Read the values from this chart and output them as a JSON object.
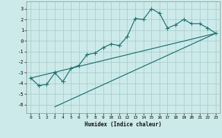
{
  "xlabel": "Humidex (Indice chaleur)",
  "bg_color": "#cdeaea",
  "grid_color": "#aacccc",
  "line_color": "#1a7070",
  "xlim": [
    -0.5,
    23.5
  ],
  "ylim": [
    -6.8,
    3.7
  ],
  "xticks": [
    0,
    1,
    2,
    3,
    4,
    5,
    6,
    7,
    8,
    9,
    10,
    11,
    12,
    13,
    14,
    15,
    16,
    17,
    18,
    19,
    20,
    21,
    22,
    23
  ],
  "yticks": [
    -6,
    -5,
    -4,
    -3,
    -2,
    -1,
    0,
    1,
    2,
    3
  ],
  "curve1_x": [
    0,
    1,
    2,
    3,
    4,
    5,
    6,
    7,
    8,
    9,
    10,
    11,
    12,
    13,
    14,
    15,
    16,
    17,
    18,
    19,
    20,
    21,
    22,
    23
  ],
  "curve1_y": [
    -3.5,
    -4.2,
    -4.1,
    -3.0,
    -3.85,
    -2.6,
    -2.3,
    -1.3,
    -1.15,
    -0.65,
    -0.3,
    -0.45,
    0.4,
    2.1,
    2.0,
    3.0,
    2.6,
    1.2,
    1.5,
    2.0,
    1.6,
    1.6,
    1.2,
    0.7
  ],
  "curve2_x": [
    0,
    23
  ],
  "curve2_y": [
    -3.5,
    0.7
  ],
  "curve3_x": [
    3,
    23
  ],
  "curve3_y": [
    -6.2,
    0.7
  ],
  "marker": "+",
  "markersize": 4,
  "linewidth": 0.9
}
